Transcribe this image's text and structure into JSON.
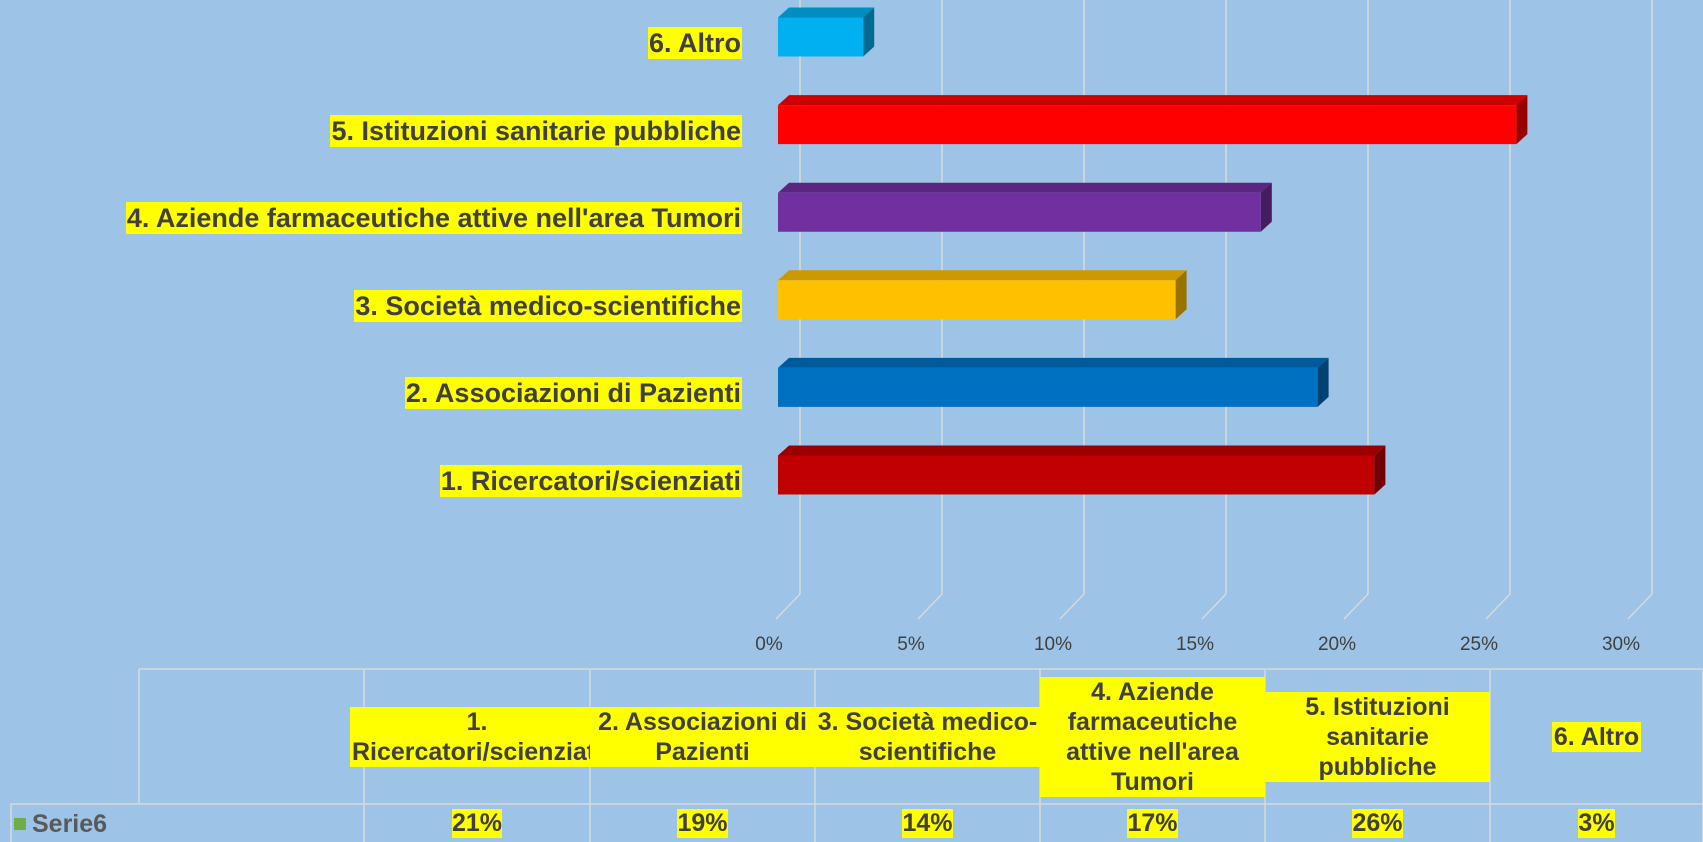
{
  "chart_data": {
    "type": "bar",
    "orientation": "horizontal",
    "categories": [
      "1. Ricercatori/scienziati",
      "2. Associazioni di Pazienti",
      "3. Società medico-scientifiche",
      "4. Aziende farmaceutiche attive nell'area Tumori",
      "5. Istituzioni sanitarie pubbliche",
      "6. Altro"
    ],
    "series": [
      {
        "name": "Serie6",
        "color": "#70ad47",
        "values": [
          21,
          19,
          14,
          17,
          26,
          3
        ],
        "value_labels": [
          "21%",
          "19%",
          "14%",
          "17%",
          "26%",
          "3%"
        ]
      }
    ],
    "bar_colors": [
      "#c00000",
      "#0070c0",
      "#ffc000",
      "#7030a0",
      "#ff0000",
      "#00b0f0"
    ],
    "xlim": [
      0,
      30
    ],
    "xticks": [
      {
        "value": 0,
        "label": "0%"
      },
      {
        "value": 5,
        "label": "5%"
      },
      {
        "value": 10,
        "label": "10%"
      },
      {
        "value": 15,
        "label": "15%"
      },
      {
        "value": 20,
        "label": "20%"
      },
      {
        "value": 25,
        "label": "25%"
      },
      {
        "value": 30,
        "label": "30%"
      }
    ],
    "grid": true,
    "data_table": true
  }
}
